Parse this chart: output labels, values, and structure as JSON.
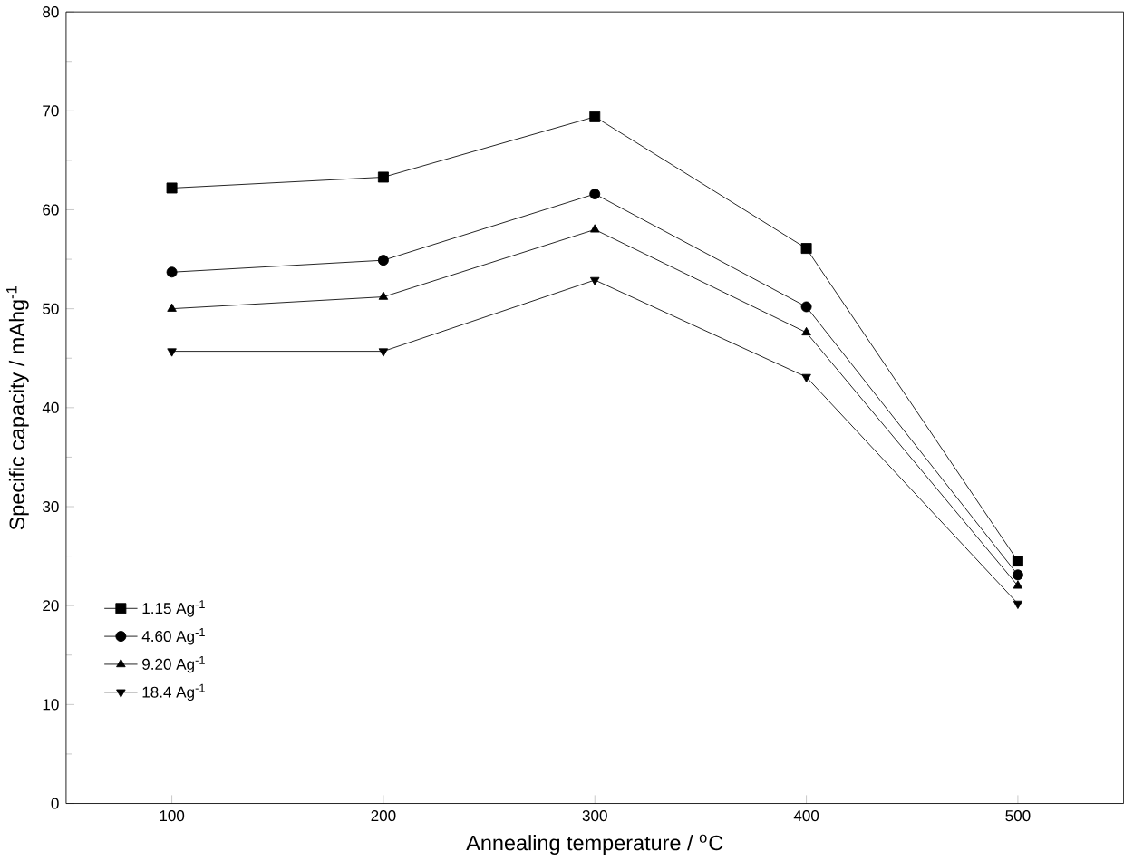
{
  "chart_data": {
    "type": "line",
    "xlabel": "Annealing temperature /  $^{o}$C",
    "ylabel": "Specific capacity /  mAhg$^{-1}$",
    "x": [
      100,
      200,
      300,
      400,
      500
    ],
    "xlim": [
      50,
      550
    ],
    "xticks": [
      100,
      200,
      300,
      400,
      500
    ],
    "ylim": [
      0,
      80
    ],
    "yticks": [
      0,
      10,
      20,
      30,
      40,
      50,
      60,
      70,
      80
    ],
    "legend": "bottom left",
    "grid": false,
    "series": [
      {
        "name": "1.15 Ag$^{-1}$",
        "color": "#000000",
        "marker": "square",
        "values": [
          62.2,
          63.3,
          69.4,
          56.1,
          24.5
        ]
      },
      {
        "name": "4.60 Ag$^{-1}$",
        "color": "#000000",
        "marker": "circle",
        "values": [
          53.7,
          54.9,
          61.6,
          50.2,
          23.1
        ]
      },
      {
        "name": "9.20 Ag$^{-1}$",
        "color": "#000000",
        "marker": "triangle",
        "values": [
          50.0,
          51.2,
          58.0,
          47.6,
          22.0
        ]
      },
      {
        "name": "18.4 Ag$^{-1}$",
        "color": "#000000",
        "marker": "triangle down",
        "values": [
          45.7,
          45.7,
          52.9,
          43.1,
          20.2
        ]
      }
    ]
  }
}
